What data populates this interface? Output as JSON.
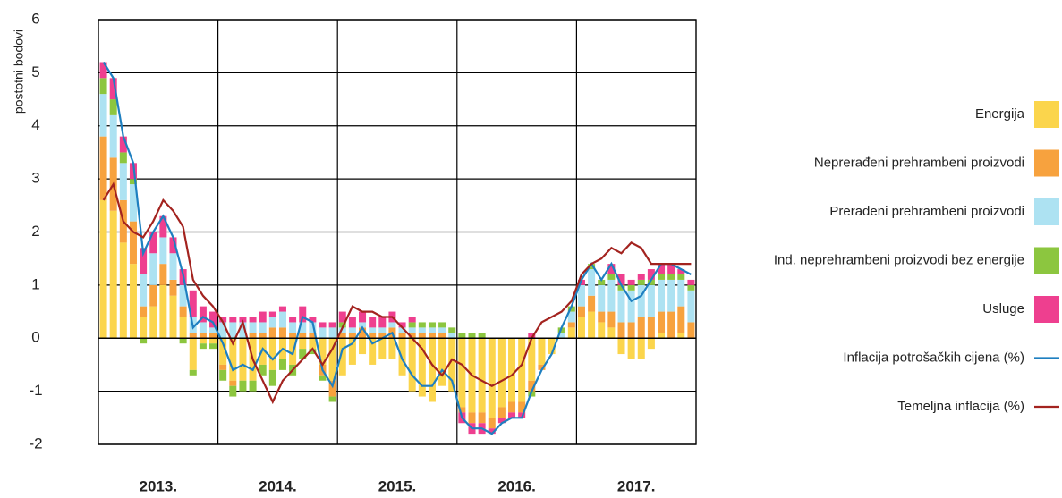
{
  "chart_data": {
    "type": "stacked_bar_line",
    "y_label": "postotni bodovi",
    "categories": [
      null,
      null,
      null,
      null,
      null,
      null,
      null,
      null,
      null,
      null,
      null,
      null,
      null,
      null,
      null,
      null,
      null,
      null,
      null,
      null,
      null,
      null,
      null,
      null,
      null,
      null,
      null,
      null,
      null,
      null,
      null,
      null,
      null,
      null,
      null,
      null,
      null,
      null,
      null,
      null,
      null,
      null,
      null,
      null,
      null,
      null,
      null,
      null,
      null,
      null,
      null,
      null,
      null,
      null,
      null,
      null,
      null,
      null,
      null,
      null
    ],
    "groups": [
      "2013.",
      "2014.",
      "2015.",
      "2016.",
      "2017."
    ],
    "ylim": [
      -2,
      6
    ],
    "yticks": [
      -2,
      -1,
      0,
      1,
      2,
      3,
      4,
      5,
      6
    ],
    "grid": true,
    "legend": "right",
    "series": [
      {
        "name": "Energija",
        "color": "#fbd54c",
        "kind": "bar",
        "values": [
          2.6,
          2.4,
          1.8,
          1.4,
          0.4,
          0.6,
          1.0,
          0.8,
          0.4,
          -0.6,
          -0.1,
          -0.1,
          -0.5,
          -0.8,
          -0.8,
          -0.8,
          -0.5,
          -0.6,
          -0.4,
          -0.5,
          -0.2,
          -0.2,
          -0.5,
          -0.8,
          -0.7,
          -0.5,
          -0.3,
          -0.5,
          -0.4,
          -0.4,
          -0.7,
          -1.0,
          -1.1,
          -1.2,
          -0.9,
          -1.0,
          -1.3,
          -1.4,
          -1.4,
          -1.5,
          -1.3,
          -1.2,
          -1.2,
          -0.8,
          -0.5,
          -0.3,
          0.0,
          0.2,
          0.4,
          0.5,
          0.3,
          0.2,
          -0.3,
          -0.4,
          -0.4,
          -0.2,
          0.1,
          0.0,
          0.1,
          0.0
        ]
      },
      {
        "name": "Neprerađeni prehrambeni proizvodi",
        "color": "#f7a23e",
        "kind": "bar",
        "values": [
          1.2,
          1.0,
          0.8,
          0.8,
          0.2,
          0.4,
          0.4,
          0.3,
          0.2,
          0.1,
          0.1,
          0.1,
          -0.1,
          -0.1,
          0.0,
          0.1,
          0.1,
          0.2,
          0.2,
          0.1,
          0.1,
          0.1,
          -0.2,
          -0.3,
          0.1,
          0.1,
          0.2,
          0.1,
          0.1,
          0.2,
          0.1,
          0.1,
          0.1,
          0.1,
          0.1,
          0.0,
          -0.1,
          -0.2,
          -0.2,
          -0.2,
          -0.2,
          -0.2,
          -0.2,
          -0.2,
          -0.1,
          0.0,
          0.0,
          0.1,
          0.2,
          0.3,
          0.2,
          0.3,
          0.3,
          0.3,
          0.4,
          0.4,
          0.4,
          0.5,
          0.5,
          0.3
        ]
      },
      {
        "name": "Prerađeni prehrambeni proizvodi",
        "color": "#ade2f2",
        "kind": "bar",
        "values": [
          0.8,
          0.8,
          0.7,
          0.7,
          0.6,
          0.6,
          0.5,
          0.5,
          0.4,
          0.3,
          0.2,
          0.1,
          0.3,
          0.3,
          0.3,
          0.2,
          0.2,
          0.2,
          0.3,
          0.2,
          0.2,
          0.2,
          0.2,
          0.2,
          0.1,
          0.1,
          0.1,
          0.1,
          0.1,
          0.1,
          0.1,
          0.1,
          0.1,
          0.1,
          0.1,
          0.1,
          0.0,
          0.0,
          0.0,
          0.0,
          0.0,
          0.0,
          0.0,
          0.0,
          0.0,
          0.0,
          0.1,
          0.2,
          0.4,
          0.5,
          0.5,
          0.6,
          0.6,
          0.6,
          0.6,
          0.6,
          0.6,
          0.6,
          0.5,
          0.6
        ]
      },
      {
        "name": "Ind. neprehrambeni proizvodi bez energije",
        "color": "#8cc63f",
        "kind": "bar",
        "values": [
          0.3,
          0.3,
          0.2,
          0.1,
          -0.1,
          0.0,
          0.0,
          0.0,
          -0.1,
          -0.1,
          -0.1,
          -0.1,
          -0.2,
          -0.2,
          -0.2,
          -0.2,
          -0.2,
          -0.3,
          -0.2,
          -0.2,
          -0.2,
          -0.1,
          -0.1,
          -0.1,
          0.1,
          0.0,
          0.0,
          0.0,
          0.0,
          0.0,
          0.0,
          0.1,
          0.1,
          0.1,
          0.1,
          0.1,
          0.1,
          0.1,
          0.1,
          0.0,
          0.0,
          0.0,
          0.0,
          -0.1,
          0.0,
          0.0,
          0.1,
          0.1,
          0.0,
          0.1,
          0.1,
          0.1,
          0.1,
          0.1,
          0.1,
          0.1,
          0.1,
          0.1,
          0.1,
          0.1
        ]
      },
      {
        "name": "Usluge",
        "color": "#ee3f8f",
        "kind": "bar",
        "values": [
          0.3,
          0.4,
          0.3,
          0.3,
          0.5,
          0.4,
          0.4,
          0.3,
          0.3,
          0.5,
          0.3,
          0.3,
          0.1,
          0.1,
          0.1,
          0.1,
          0.2,
          0.1,
          0.1,
          0.1,
          0.3,
          0.1,
          0.1,
          0.1,
          0.2,
          0.2,
          0.2,
          0.2,
          0.2,
          0.2,
          0.1,
          0.1,
          0.0,
          0.0,
          0.0,
          0.0,
          -0.2,
          -0.2,
          -0.2,
          -0.1,
          -0.1,
          -0.1,
          -0.1,
          0.1,
          0.0,
          0.0,
          0.0,
          0.0,
          0.1,
          0.0,
          0.0,
          0.2,
          0.2,
          0.1,
          0.1,
          0.2,
          0.2,
          0.2,
          0.1,
          0.1
        ]
      },
      {
        "name": "Inflacija potrošačkih cijena (%)",
        "color": "#1e7fc0",
        "kind": "line",
        "values": [
          5.2,
          4.9,
          3.8,
          3.3,
          1.6,
          2.0,
          2.3,
          1.9,
          1.2,
          0.2,
          0.4,
          0.3,
          -0.1,
          -0.6,
          -0.5,
          -0.6,
          -0.2,
          -0.4,
          -0.2,
          -0.3,
          0.4,
          0.3,
          -0.6,
          -0.9,
          -0.2,
          -0.1,
          0.2,
          -0.1,
          0.0,
          0.1,
          -0.4,
          -0.7,
          -0.9,
          -0.9,
          -0.6,
          -0.8,
          -1.5,
          -1.7,
          -1.7,
          -1.8,
          -1.6,
          -1.5,
          -1.5,
          -1.0,
          -0.6,
          -0.3,
          0.2,
          0.6,
          1.1,
          1.4,
          1.1,
          1.4,
          1.0,
          0.7,
          0.8,
          1.1,
          1.4,
          1.4,
          1.3,
          1.2
        ]
      },
      {
        "name": "Temeljna inflacija (%)",
        "color": "#a3231f",
        "kind": "line",
        "values": [
          2.6,
          2.9,
          2.2,
          2.0,
          1.9,
          2.2,
          2.6,
          2.4,
          2.1,
          1.1,
          0.8,
          0.6,
          0.3,
          -0.1,
          0.3,
          -0.4,
          -0.8,
          -1.2,
          -0.8,
          -0.6,
          -0.4,
          -0.2,
          -0.5,
          -0.2,
          0.2,
          0.6,
          0.5,
          0.5,
          0.4,
          0.4,
          0.2,
          0.0,
          -0.2,
          -0.5,
          -0.7,
          -0.4,
          -0.5,
          -0.7,
          -0.8,
          -0.9,
          -0.8,
          -0.7,
          -0.5,
          0.0,
          0.3,
          0.4,
          0.5,
          0.7,
          1.2,
          1.4,
          1.5,
          1.7,
          1.6,
          1.8,
          1.7,
          1.4,
          1.4,
          1.4,
          1.4,
          1.4
        ]
      }
    ]
  }
}
